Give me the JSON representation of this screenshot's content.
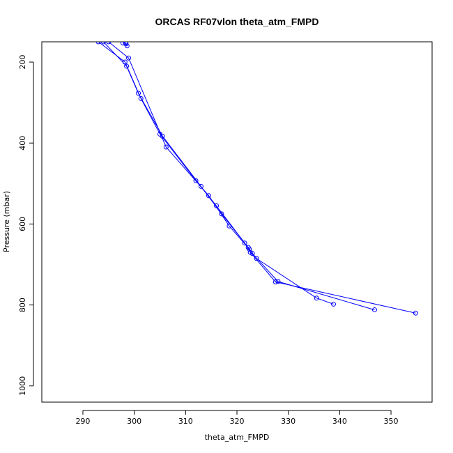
{
  "chart_data": {
    "type": "line",
    "title": "ORCAS RF07vlon theta_atm_FMPD",
    "xlabel": "theta_atm_FMPD",
    "ylabel": "Pressure (mbar)",
    "xlim": [
      282,
      358
    ],
    "ylim": [
      1040,
      150
    ],
    "y_inverted": true,
    "xticks": [
      290,
      300,
      310,
      320,
      330,
      340,
      350
    ],
    "yticks": [
      200,
      400,
      600,
      800,
      1000
    ],
    "grid": false,
    "legend": "none",
    "marker": "open-circle",
    "color": "#0000ff",
    "series": [
      {
        "x": [
          293.0,
          298.2,
          301.3,
          305.0,
          312.0,
          316.0,
          321.5,
          322.6,
          327.5,
          354.8
        ],
        "y": [
          150,
          200,
          290,
          378,
          493,
          555,
          647,
          670,
          743,
          820
        ]
      },
      {
        "x": [
          294.0,
          298.5,
          300.8,
          305.5,
          313.0,
          317.0,
          322.2,
          323.0,
          328.0,
          346.8
        ],
        "y": [
          150,
          210,
          277,
          383,
          507,
          575,
          658,
          673,
          742,
          812
        ]
      },
      {
        "x": [
          295.0,
          298.9,
          306.2,
          314.5,
          318.5,
          322.4,
          323.8,
          335.5,
          338.8
        ],
        "y": [
          150,
          190,
          410,
          530,
          605,
          662,
          685,
          783,
          798
        ]
      },
      {
        "x": [
          297.8,
          298.3,
          298.4,
          298.6
        ],
        "y": [
          153,
          153,
          155,
          160
        ]
      }
    ]
  }
}
